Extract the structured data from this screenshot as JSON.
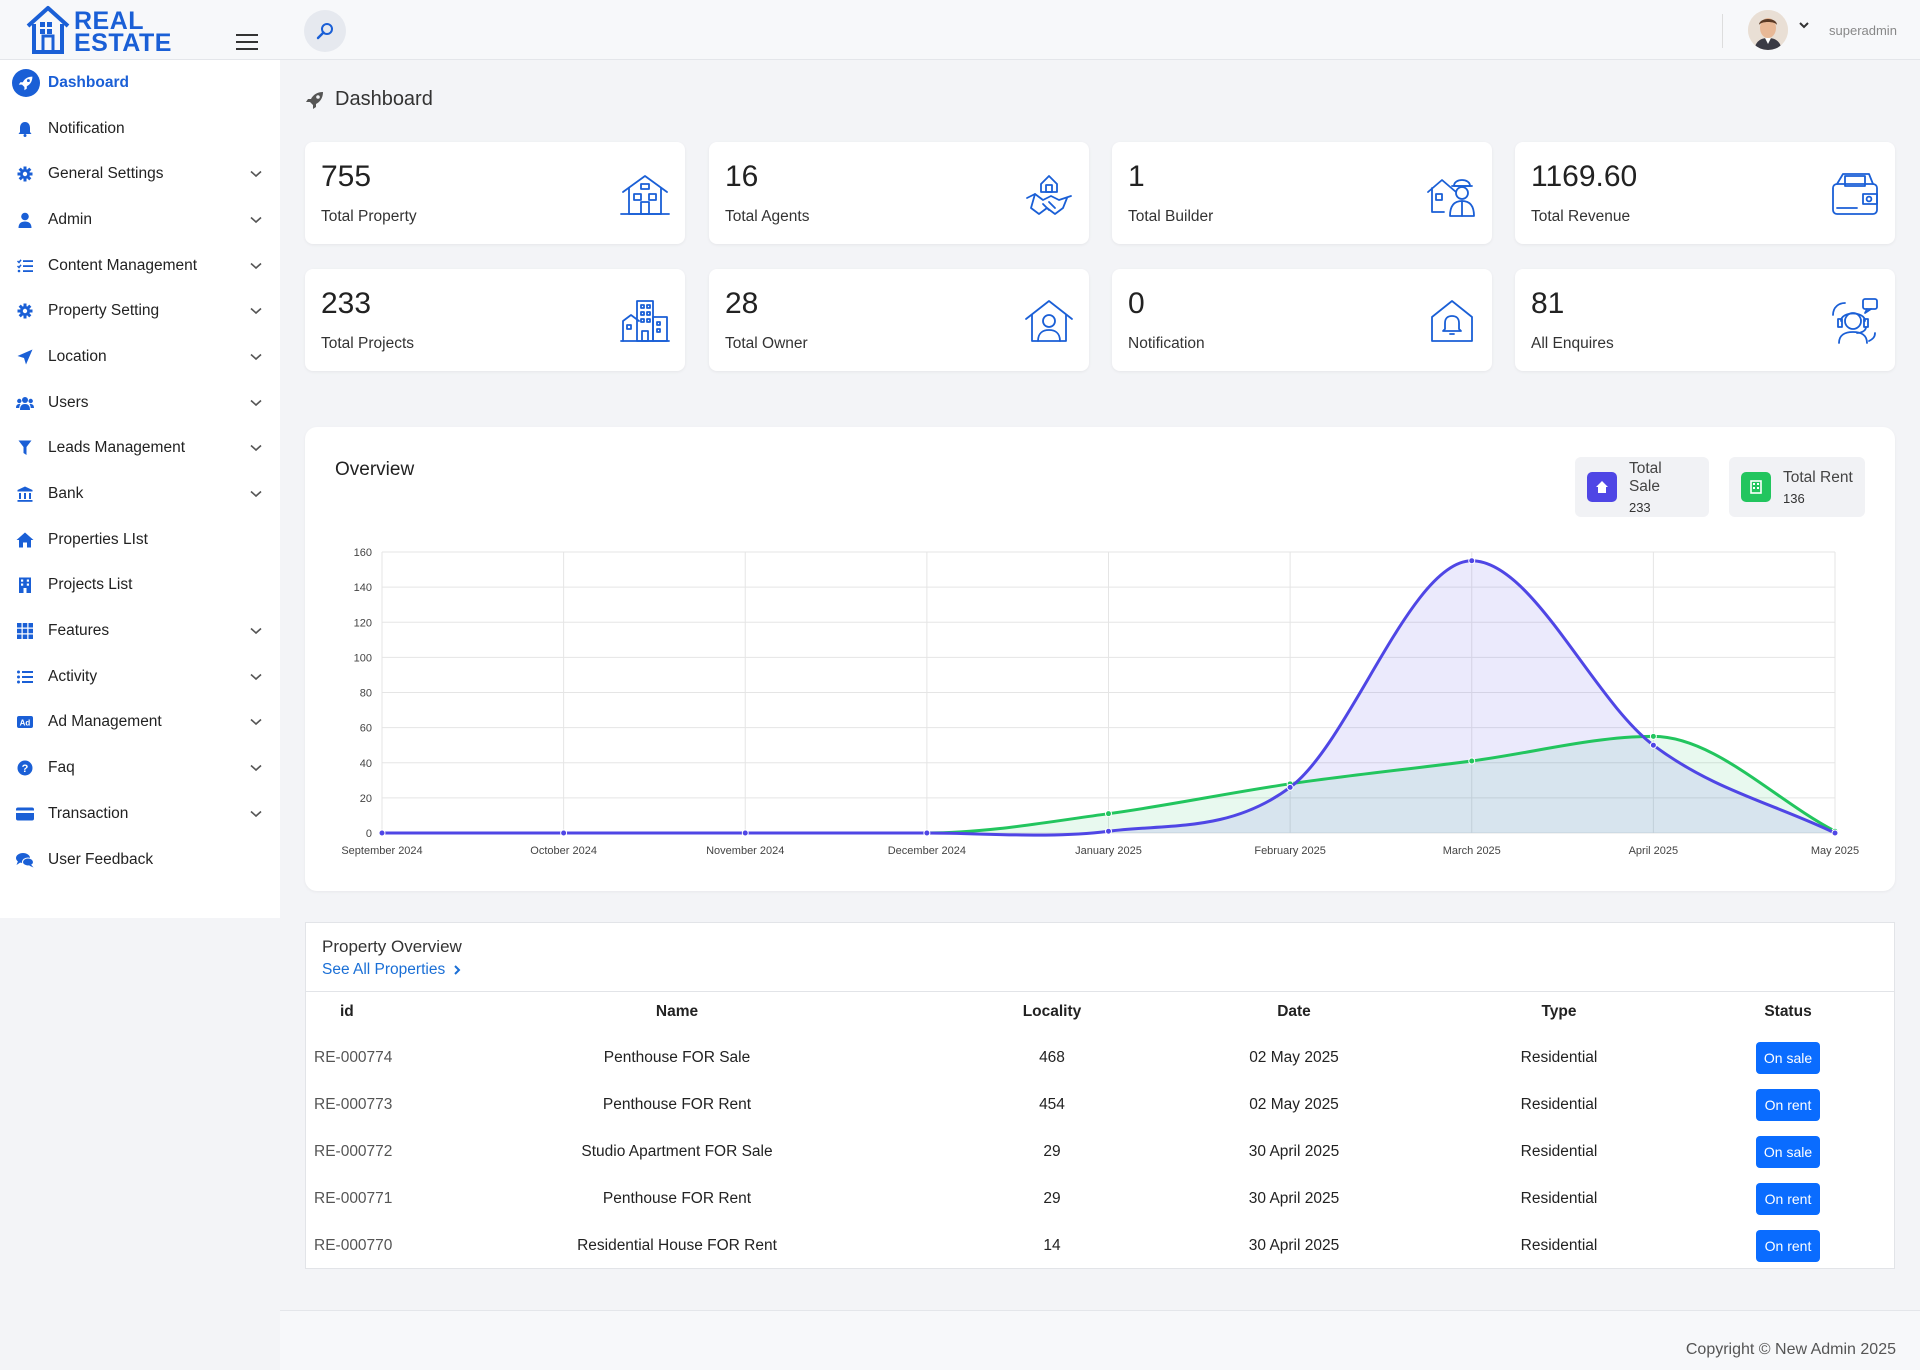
{
  "app": {
    "logo_line1": "REAL",
    "logo_line2": "ESTATE",
    "username": "superadmin"
  },
  "sidebar": {
    "items": [
      {
        "label": "Dashboard",
        "icon": "rocket-icon",
        "active": true,
        "chevron": false
      },
      {
        "label": "Notification",
        "icon": "bell-icon",
        "chevron": false
      },
      {
        "label": "General Settings",
        "icon": "gear-icon",
        "chevron": true
      },
      {
        "label": "Admin",
        "icon": "user-icon",
        "chevron": true
      },
      {
        "label": "Content Management",
        "icon": "list-check-icon",
        "chevron": true
      },
      {
        "label": "Property Setting",
        "icon": "gear-icon",
        "chevron": true
      },
      {
        "label": "Location",
        "icon": "location-arrow-icon",
        "chevron": true
      },
      {
        "label": "Users",
        "icon": "users-icon",
        "chevron": true
      },
      {
        "label": "Leads Management",
        "icon": "filter-icon",
        "chevron": true
      },
      {
        "label": "Bank",
        "icon": "bank-icon",
        "chevron": true
      },
      {
        "label": "Properties LIst",
        "icon": "home-icon",
        "chevron": false
      },
      {
        "label": "Projects List",
        "icon": "building-icon",
        "chevron": false
      },
      {
        "label": "Features",
        "icon": "grid-icon",
        "chevron": true
      },
      {
        "label": "Activity",
        "icon": "list-icon",
        "chevron": true
      },
      {
        "label": "Ad Management",
        "icon": "ad-icon",
        "chevron": true
      },
      {
        "label": "Faq",
        "icon": "question-icon",
        "chevron": true
      },
      {
        "label": "Transaction",
        "icon": "card-icon",
        "chevron": true
      },
      {
        "label": "User Feedback",
        "icon": "comments-icon",
        "chevron": false
      }
    ]
  },
  "main": {
    "page_title": "Dashboard",
    "stats": [
      {
        "value": "755",
        "label": "Total Property",
        "icon": "house-icon"
      },
      {
        "value": "16",
        "label": "Total Agents",
        "icon": "handshake-icon"
      },
      {
        "value": "1",
        "label": "Total Builder",
        "icon": "builder-icon"
      },
      {
        "value": "1169.60",
        "label": "Total Revenue",
        "icon": "wallet-icon"
      },
      {
        "value": "233",
        "label": "Total Projects",
        "icon": "buildings-icon"
      },
      {
        "value": "28",
        "label": "Total Owner",
        "icon": "owner-home-icon"
      },
      {
        "value": "0",
        "label": "Notification",
        "icon": "bell-house-icon"
      },
      {
        "value": "81",
        "label": "All Enquires",
        "icon": "support-icon"
      }
    ],
    "overview": {
      "title": "Overview",
      "legend": [
        {
          "label": "Total Sale",
          "value": "233",
          "color": "#4f46e5"
        },
        {
          "label": "Total Rent",
          "value": "136",
          "color": "#22c55e"
        }
      ]
    },
    "property_overview": {
      "title": "Property Overview",
      "link": "See All Properties",
      "columns": [
        "id",
        "Name",
        "Locality",
        "Date",
        "Type",
        "Status"
      ],
      "rows": [
        {
          "id": "RE-000774",
          "name": "Penthouse FOR Sale",
          "locality": "468",
          "date": "02 May 2025",
          "type": "Residential",
          "status": "On sale"
        },
        {
          "id": "RE-000773",
          "name": "Penthouse FOR Rent",
          "locality": "454",
          "date": "02 May 2025",
          "type": "Residential",
          "status": "On rent"
        },
        {
          "id": "RE-000772",
          "name": "Studio Apartment FOR Sale",
          "locality": "29",
          "date": "30 April 2025",
          "type": "Residential",
          "status": "On sale"
        },
        {
          "id": "RE-000771",
          "name": "Penthouse FOR Rent",
          "locality": "29",
          "date": "30 April 2025",
          "type": "Residential",
          "status": "On rent"
        },
        {
          "id": "RE-000770",
          "name": "Residential House FOR Rent",
          "locality": "14",
          "date": "30 April 2025",
          "type": "Residential",
          "status": "On rent"
        }
      ]
    }
  },
  "footer": {
    "text": "Copyright © New Admin 2025"
  },
  "chart_data": {
    "type": "area",
    "categories": [
      "September 2024",
      "October 2024",
      "November 2024",
      "December 2024",
      "January 2025",
      "February 2025",
      "March 2025",
      "April 2025",
      "May 2025"
    ],
    "series": [
      {
        "name": "Total Sale",
        "values": [
          0,
          0,
          0,
          0,
          1,
          26,
          155,
          50,
          0
        ],
        "color": "#4f46e5"
      },
      {
        "name": "Total Rent",
        "values": [
          0,
          0,
          0,
          0,
          11,
          28,
          41,
          55,
          1
        ],
        "color": "#22c55e"
      }
    ],
    "ylim": [
      0,
      160
    ],
    "yticks": [
      0,
      20,
      40,
      60,
      80,
      100,
      120,
      140,
      160
    ],
    "grid": true,
    "legend": "top-right"
  }
}
